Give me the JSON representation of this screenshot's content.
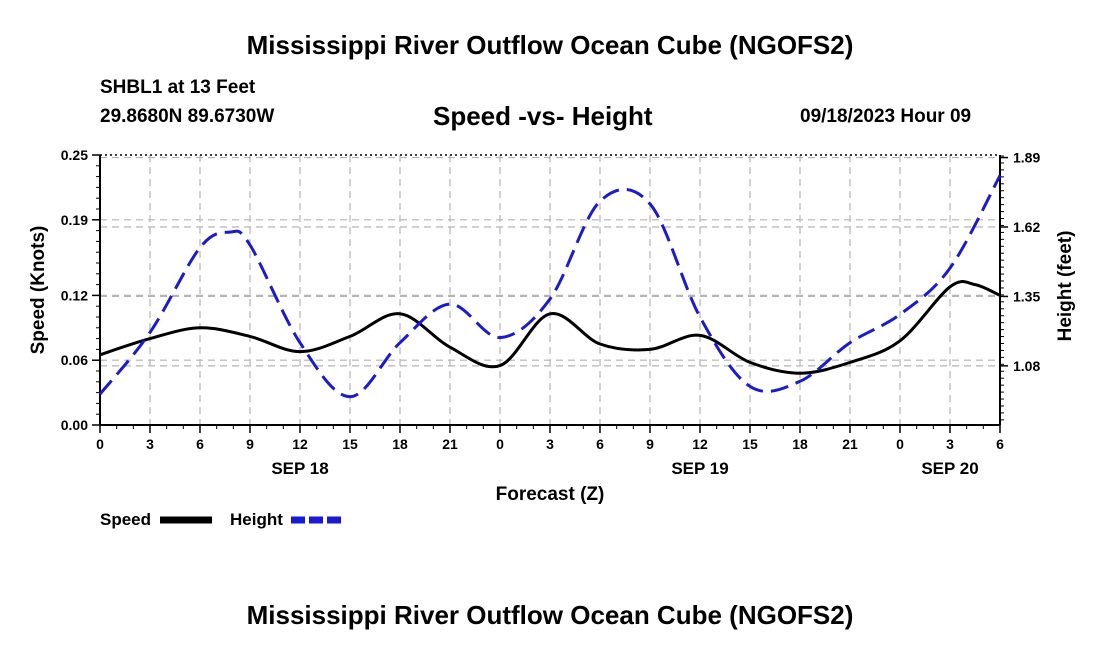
{
  "header": {
    "title": "Mississippi River Outflow Ocean Cube (NGOFS2)",
    "station": "SHBL1 at 13 Feet",
    "coords": "29.8680N  89.6730W",
    "datetime": "09/18/2023 Hour 09",
    "footer_title": "Mississippi River Outflow Ocean Cube (NGOFS2)"
  },
  "colors": {
    "speed": "#000000",
    "height": "#1a1ad0",
    "grid": "#b4b4b4"
  },
  "chart_data": {
    "type": "line",
    "title": "Speed -vs- Height",
    "xlabel": "Forecast (Z)",
    "ylabel": "Speed (Knots)",
    "y2label": "Height (feet)",
    "xlim": [
      0,
      54
    ],
    "ylim": [
      0,
      0.25
    ],
    "y2lim": [
      0.85,
      1.9
    ],
    "x_ticks": [
      0,
      3,
      6,
      9,
      12,
      15,
      18,
      21,
      24,
      27,
      30,
      33,
      36,
      39,
      42,
      45,
      48,
      51,
      54
    ],
    "x_tick_labels": [
      "0",
      "3",
      "6",
      "9",
      "12",
      "15",
      "18",
      "21",
      "0",
      "3",
      "6",
      "9",
      "12",
      "15",
      "18",
      "21",
      "0",
      "3",
      "6"
    ],
    "day_labels": [
      {
        "x": 12,
        "label": "SEP 18"
      },
      {
        "x": 36,
        "label": "SEP 19"
      },
      {
        "x": 51,
        "label": "SEP 20"
      }
    ],
    "y_ticks": [
      0,
      0.06,
      0.12,
      0.19,
      0.25
    ],
    "y_tick_labels": [
      "0.00",
      "0.06",
      "0.12",
      "0.19",
      "0.25"
    ],
    "y2_ticks": [
      1.08,
      1.35,
      1.62,
      1.89
    ],
    "y2_tick_labels": [
      "1.08",
      "1.35",
      "1.62",
      "1.89"
    ],
    "series": [
      {
        "name": "Speed",
        "axis": "left",
        "x": [
          0,
          3,
          6,
          9,
          12,
          15,
          18,
          21,
          24,
          27,
          30,
          33,
          36,
          39,
          42,
          45,
          48,
          51,
          52.5,
          54
        ],
        "values": [
          0.065,
          0.08,
          0.09,
          0.082,
          0.068,
          0.082,
          0.103,
          0.072,
          0.055,
          0.103,
          0.075,
          0.07,
          0.083,
          0.058,
          0.048,
          0.058,
          0.078,
          0.128,
          0.13,
          0.12
        ]
      },
      {
        "name": "Height",
        "axis": "right",
        "x": [
          0,
          3,
          6,
          7.8,
          9,
          12,
          15,
          18,
          21,
          24,
          27,
          30,
          33,
          36,
          39,
          42,
          45,
          48,
          51,
          54
        ],
        "values": [
          0.97,
          1.21,
          1.54,
          1.6,
          1.55,
          1.17,
          0.96,
          1.17,
          1.32,
          1.19,
          1.34,
          1.72,
          1.71,
          1.27,
          1.0,
          1.02,
          1.17,
          1.28,
          1.46,
          1.82
        ]
      }
    ],
    "legend": [
      {
        "name": "Speed"
      },
      {
        "name": "Height"
      }
    ],
    "grid": true
  }
}
